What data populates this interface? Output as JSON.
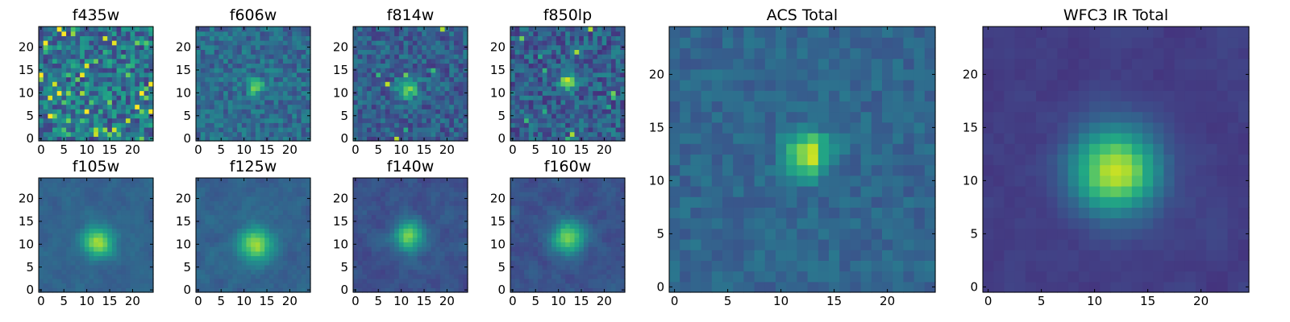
{
  "chart_data": {
    "type": "heatmap",
    "colormap": "viridis",
    "grid": false,
    "panels": [
      {
        "title": "f435w",
        "n": 25,
        "peak": [
          12,
          11
        ],
        "signal": 0.05,
        "sigma": 1.5,
        "noise": 0.22,
        "smooth": 0,
        "base": 0.38,
        "hot": 0.1,
        "seed": 3,
        "xticks": [
          "0",
          "5",
          "10",
          "15",
          "20"
        ],
        "yticks": [
          "0",
          "5",
          "10",
          "15",
          "20"
        ]
      },
      {
        "title": "f606w",
        "n": 25,
        "peak": [
          12.5,
          11.5
        ],
        "signal": 0.55,
        "sigma": 1.1,
        "noise": 0.13,
        "smooth": 0,
        "base": 0.35,
        "hot": 0.0,
        "seed": 7,
        "xticks": [
          "0",
          "5",
          "10",
          "15",
          "20"
        ],
        "yticks": [
          "0",
          "5",
          "10",
          "15",
          "20"
        ]
      },
      {
        "title": "f814w",
        "n": 25,
        "peak": [
          11.5,
          11
        ],
        "signal": 0.5,
        "sigma": 1.6,
        "noise": 0.14,
        "smooth": 0,
        "base": 0.3,
        "hot": 0.01,
        "seed": 11,
        "xticks": [
          "0",
          "5",
          "10",
          "15",
          "20"
        ],
        "yticks": [
          "0",
          "5",
          "10",
          "15",
          "20"
        ]
      },
      {
        "title": "f850lp",
        "n": 25,
        "peak": [
          12,
          12.5
        ],
        "signal": 0.55,
        "sigma": 1.3,
        "noise": 0.16,
        "smooth": 0,
        "base": 0.3,
        "hot": 0.02,
        "seed": 19,
        "xticks": [
          "0",
          "5",
          "10",
          "15",
          "20"
        ],
        "yticks": [
          "0",
          "5",
          "10",
          "15",
          "20"
        ]
      },
      {
        "title": "f105w",
        "n": 25,
        "peak": [
          12.5,
          10.5
        ],
        "signal": 0.6,
        "sigma": 2.2,
        "noise": 0.08,
        "smooth": 1,
        "base": 0.32,
        "hot": 0.0,
        "seed": 23,
        "xticks": [
          "0",
          "5",
          "10",
          "15",
          "20"
        ],
        "yticks": [
          "0",
          "5",
          "10",
          "15",
          "20"
        ]
      },
      {
        "title": "f125w",
        "n": 25,
        "peak": [
          12.5,
          10
        ],
        "signal": 0.6,
        "sigma": 2.4,
        "noise": 0.09,
        "smooth": 1,
        "base": 0.32,
        "hot": 0.0,
        "seed": 29,
        "xticks": [
          "0",
          "5",
          "10",
          "15",
          "20"
        ],
        "yticks": [
          "0",
          "5",
          "10",
          "15",
          "20"
        ]
      },
      {
        "title": "f140w",
        "n": 25,
        "peak": [
          11.5,
          12
        ],
        "signal": 0.6,
        "sigma": 2.2,
        "noise": 0.1,
        "smooth": 1,
        "base": 0.25,
        "hot": 0.0,
        "seed": 31,
        "xticks": [
          "0",
          "5",
          "10",
          "15",
          "20"
        ],
        "yticks": [
          "0",
          "5",
          "10",
          "15",
          "20"
        ]
      },
      {
        "title": "f160w",
        "n": 25,
        "peak": [
          12,
          11.5
        ],
        "signal": 0.62,
        "sigma": 2.4,
        "noise": 0.1,
        "smooth": 1,
        "base": 0.25,
        "hot": 0.0,
        "seed": 37,
        "xticks": [
          "0",
          "5",
          "10",
          "15",
          "20"
        ],
        "yticks": [
          "0",
          "5",
          "10",
          "15",
          "20"
        ]
      },
      {
        "title": "ACS Total",
        "n": 25,
        "peak": [
          12.5,
          12.5
        ],
        "signal": 0.6,
        "sigma": 1.4,
        "noise": 0.07,
        "smooth": 0,
        "base": 0.33,
        "hot": 0.0,
        "seed": 41,
        "xticks": [
          "0",
          "5",
          "10",
          "15",
          "20"
        ],
        "yticks": [
          "0",
          "5",
          "10",
          "15",
          "20"
        ]
      },
      {
        "title": "WFC3 IR Total",
        "n": 25,
        "peak": [
          12,
          11
        ],
        "signal": 0.78,
        "sigma": 2.7,
        "noise": 0.05,
        "smooth": 1,
        "base": 0.18,
        "hot": 0.0,
        "seed": 43,
        "xticks": [
          "0",
          "5",
          "10",
          "15",
          "20"
        ],
        "yticks": [
          "0",
          "5",
          "10",
          "15",
          "20"
        ]
      }
    ]
  }
}
